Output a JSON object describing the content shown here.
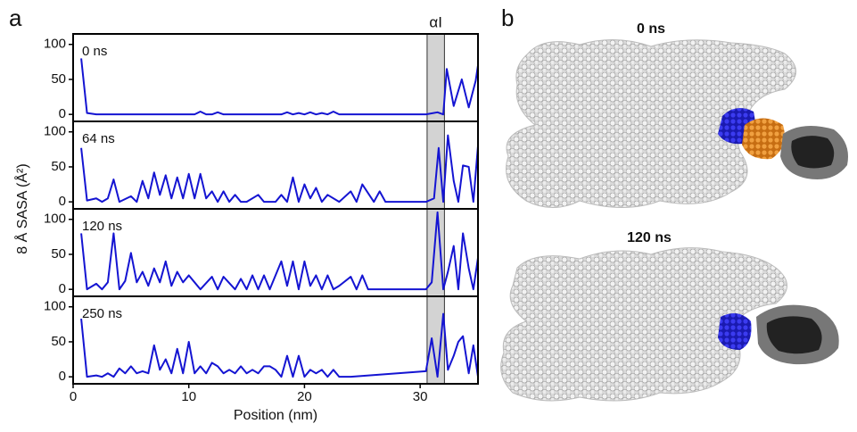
{
  "panels": {
    "a": "a",
    "b": "b",
    "b_titles": [
      "0 ns",
      "120 ns"
    ]
  },
  "chart_data": [
    {
      "type": "line",
      "label": "0 ns",
      "color": "#1414d2",
      "annotation": "αI",
      "highlight": [
        30.6,
        32.1
      ],
      "ylabel": "8 Å SASA (Å²)",
      "xlim": [
        0,
        35
      ],
      "ylim": [
        -10,
        115
      ],
      "yticks": [
        0,
        50,
        100
      ],
      "x": [
        0.7,
        1.2,
        2,
        10.5,
        11,
        11.5,
        12,
        12.5,
        13,
        18,
        18.5,
        19,
        19.5,
        20,
        20.5,
        21,
        21.5,
        22,
        22.5,
        23,
        30.5,
        31.5,
        32,
        32.3,
        32.9,
        33.6,
        34.2,
        34.8,
        35
      ],
      "values": [
        80,
        2,
        0,
        0,
        4,
        0,
        0,
        3,
        0,
        0,
        3,
        0,
        2,
        0,
        3,
        0,
        2,
        0,
        4,
        0,
        0,
        3,
        0,
        65,
        12,
        50,
        10,
        48,
        70
      ]
    },
    {
      "type": "line",
      "label": "64 ns",
      "color": "#1414d2",
      "highlight": [
        30.6,
        32.1
      ],
      "xlim": [
        0,
        35
      ],
      "ylim": [
        -10,
        115
      ],
      "yticks": [
        0,
        50,
        100
      ],
      "x": [
        0.7,
        1.2,
        2,
        2.5,
        3,
        3.5,
        4,
        5,
        5.5,
        6,
        6.5,
        7,
        7.5,
        8,
        8.5,
        9,
        9.5,
        10,
        10.5,
        11,
        11.5,
        12,
        12.5,
        13,
        13.5,
        14,
        14.5,
        15,
        16,
        16.5,
        17,
        17.5,
        18,
        18.5,
        19,
        19.5,
        20,
        20.5,
        21,
        21.5,
        22,
        23,
        24,
        24.5,
        25,
        26,
        26.5,
        27,
        30.5,
        31.2,
        31.6,
        32,
        32.4,
        32.9,
        33.3,
        33.7,
        34.2,
        34.6,
        35
      ],
      "values": [
        77,
        2,
        5,
        0,
        5,
        32,
        0,
        8,
        0,
        30,
        5,
        42,
        10,
        38,
        5,
        35,
        5,
        40,
        5,
        40,
        5,
        15,
        0,
        15,
        0,
        10,
        0,
        0,
        10,
        0,
        0,
        0,
        10,
        0,
        35,
        0,
        25,
        5,
        20,
        0,
        10,
        0,
        15,
        0,
        25,
        0,
        15,
        0,
        0,
        5,
        77,
        0,
        95,
        30,
        0,
        52,
        50,
        0,
        80
      ]
    },
    {
      "type": "line",
      "label": "120 ns",
      "color": "#1414d2",
      "highlight": [
        30.6,
        32.1
      ],
      "xlim": [
        0,
        35
      ],
      "ylim": [
        -10,
        115
      ],
      "yticks": [
        0,
        50,
        100
      ],
      "x": [
        0.7,
        1.2,
        2,
        2.5,
        3,
        3.5,
        4,
        4.5,
        5,
        5.5,
        6,
        6.5,
        7,
        7.5,
        8,
        8.5,
        9,
        9.5,
        10,
        10.5,
        11,
        12,
        12.5,
        13,
        14,
        14.5,
        15,
        15.5,
        16,
        16.5,
        17,
        18,
        18.5,
        19,
        19.5,
        20,
        20.5,
        21,
        21.5,
        22,
        22.5,
        23,
        24,
        24.5,
        25,
        25.5,
        26,
        30.5,
        31,
        31.5,
        32,
        32.4,
        32.9,
        33.3,
        33.7,
        34.2,
        34.6,
        35
      ],
      "values": [
        80,
        0,
        8,
        0,
        10,
        80,
        0,
        12,
        52,
        10,
        25,
        5,
        30,
        10,
        40,
        5,
        25,
        10,
        20,
        10,
        0,
        18,
        0,
        18,
        0,
        15,
        0,
        20,
        0,
        20,
        0,
        40,
        5,
        40,
        0,
        40,
        5,
        20,
        0,
        20,
        0,
        5,
        18,
        0,
        20,
        0,
        0,
        0,
        10,
        110,
        0,
        25,
        62,
        0,
        80,
        30,
        0,
        45
      ]
    },
    {
      "type": "line",
      "label": "250 ns",
      "color": "#1414d2",
      "highlight": [
        30.6,
        32.1
      ],
      "xlabel": "Position (nm)",
      "xlim": [
        0,
        35
      ],
      "xticks": [
        0,
        10,
        20,
        30
      ],
      "ylim": [
        -10,
        115
      ],
      "yticks": [
        0,
        50,
        100
      ],
      "x": [
        0.7,
        1.2,
        2,
        2.5,
        3,
        3.5,
        4,
        4.5,
        5,
        5.5,
        6,
        6.5,
        7,
        7.5,
        8,
        8.5,
        9,
        9.5,
        10,
        10.5,
        11,
        11.5,
        12,
        12.5,
        13,
        13.5,
        14,
        14.5,
        15,
        15.5,
        16,
        16.5,
        17,
        17.5,
        18,
        18.5,
        19,
        19.5,
        20,
        20.5,
        21,
        21.5,
        22,
        22.5,
        23,
        24,
        30.5,
        31,
        31.5,
        32,
        32.4,
        32.9,
        33.3,
        33.7,
        34.2,
        34.6,
        35
      ],
      "values": [
        83,
        0,
        2,
        0,
        5,
        0,
        12,
        5,
        15,
        5,
        8,
        5,
        45,
        10,
        25,
        5,
        40,
        5,
        50,
        5,
        15,
        5,
        20,
        15,
        5,
        10,
        5,
        15,
        5,
        10,
        5,
        15,
        15,
        10,
        0,
        30,
        0,
        30,
        0,
        10,
        5,
        10,
        0,
        10,
        0,
        0,
        8,
        55,
        0,
        90,
        10,
        30,
        50,
        58,
        5,
        45,
        0
      ]
    }
  ]
}
